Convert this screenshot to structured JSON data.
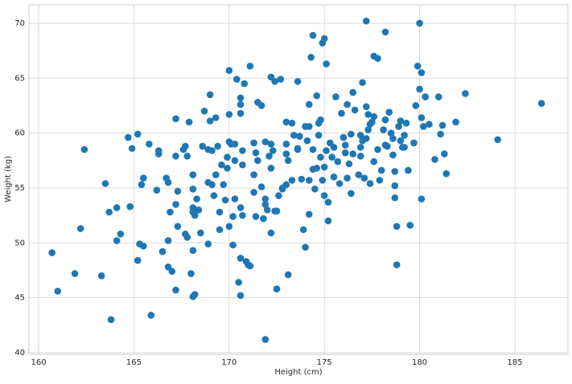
{
  "chart_data": {
    "type": "scatter",
    "x_label": "Height (cm)",
    "y_label": "Weight (kg)",
    "color": "#1f77b4",
    "grid": true,
    "xlim": [
      159.49,
      187.79
    ],
    "ylim": [
      39.85,
      71.68
    ],
    "xticks": [
      160,
      165,
      170,
      175,
      180,
      185
    ],
    "yticks": [
      40,
      45,
      50,
      55,
      60,
      65,
      70
    ],
    "x": [
      160.7,
      161.0,
      161.9,
      162.2,
      162.4,
      163.3,
      163.5,
      163.7,
      163.8,
      164.1,
      164.1,
      164.3,
      164.7,
      164.8,
      164.9,
      165.2,
      165.2,
      165.3,
      165.4,
      165.5,
      165.5,
      165.8,
      165.9,
      166.2,
      166.3,
      166.3,
      166.5,
      166.7,
      166.8,
      166.8,
      166.8,
      166.9,
      167.0,
      167.2,
      167.2,
      167.2,
      167.3,
      167.2,
      167.3,
      167.6,
      167.7,
      167.8,
      167.7,
      167.8,
      167.9,
      168.0,
      168.1,
      168.1,
      168.1,
      168.1,
      168.2,
      168.1,
      168.1,
      168.2,
      168.3,
      168.4,
      168.5,
      168.6,
      168.7,
      168.9,
      168.9,
      168.9,
      169.0,
      169.0,
      169.1,
      169.1,
      169.2,
      169.3,
      169.3,
      169.4,
      169.5,
      169.5,
      169.6,
      169.7,
      169.8,
      169.9,
      169.9,
      170.0,
      170.0,
      170.0,
      170.0,
      170.1,
      170.2,
      170.2,
      170.3,
      170.3,
      170.3,
      170.4,
      170.5,
      170.6,
      170.6,
      170.6,
      170.6,
      170.6,
      170.6,
      170.7,
      170.7,
      170.7,
      170.8,
      170.9,
      171.0,
      171.1,
      171.1,
      171.3,
      171.3,
      171.3,
      171.4,
      171.4,
      171.5,
      171.5,
      171.7,
      171.8,
      171.7,
      171.9,
      171.9,
      171.9,
      171.9,
      172.0,
      172.1,
      172.2,
      172.2,
      172.2,
      172.2,
      172.3,
      172.4,
      172.4,
      172.5,
      172.5,
      172.6,
      172.7,
      172.8,
      172.8,
      173.0,
      173.0,
      173.0,
      173.0,
      173.1,
      173.1,
      173.3,
      173.3,
      173.4,
      173.6,
      173.6,
      173.6,
      173.7,
      173.8,
      173.9,
      174.0,
      174.0,
      174.1,
      174.2,
      174.2,
      174.2,
      174.2,
      174.3,
      174.4,
      174.4,
      174.4,
      174.5,
      174.6,
      174.6,
      174.7,
      174.7,
      174.8,
      174.8,
      174.9,
      174.9,
      175.0,
      175.0,
      175.0,
      175.1,
      175.1,
      175.2,
      175.2,
      175.3,
      175.4,
      175.5,
      175.5,
      175.6,
      175.7,
      175.8,
      175.9,
      176.0,
      176.1,
      176.1,
      176.2,
      176.2,
      176.3,
      176.4,
      176.4,
      176.5,
      176.5,
      176.6,
      176.8,
      176.9,
      176.9,
      176.9,
      177.0,
      177.0,
      177.1,
      177.2,
      177.2,
      177.3,
      177.3,
      177.4,
      177.4,
      177.5,
      177.6,
      177.6,
      177.8,
      177.9,
      178.0,
      178.1,
      178.2,
      178.2,
      178.3,
      178.4,
      178.5,
      178.6,
      178.6,
      178.7,
      178.7,
      178.7,
      178.8,
      178.8,
      178.9,
      179.0,
      179.0,
      179.1,
      179.2,
      179.2,
      179.3,
      179.4,
      179.5,
      179.7,
      179.8,
      179.9,
      180.0,
      180.0,
      180.1,
      180.1,
      180.1,
      180.2,
      180.3,
      180.5,
      180.8,
      181.0,
      181.1,
      181.2,
      181.3,
      181.4,
      181.9,
      182.4,
      184.1,
      186.4,
      177.2,
      178.2,
      177.6,
      177.8
    ],
    "y": [
      49.1,
      45.6,
      47.2,
      51.3,
      58.5,
      47.0,
      55.4,
      52.8,
      43.0,
      53.2,
      50.2,
      50.8,
      59.6,
      53.3,
      58.6,
      59.9,
      48.4,
      49.9,
      55.3,
      49.7,
      55.9,
      59.0,
      43.4,
      54.8,
      58.4,
      58.1,
      49.2,
      55.9,
      55.5,
      50.2,
      47.8,
      52.8,
      47.4,
      61.3,
      57.9,
      53.5,
      54.7,
      45.7,
      51.5,
      58.5,
      58.8,
      57.9,
      50.8,
      50.5,
      61.0,
      47.2,
      56.2,
      54.9,
      53.2,
      52.8,
      52.5,
      49.3,
      45.1,
      45.3,
      54.0,
      53.0,
      50.9,
      58.8,
      62.0,
      58.5,
      55.5,
      49.9,
      63.5,
      61.1,
      55.3,
      58.4,
      54.3,
      61.4,
      56.2,
      58.8,
      52.8,
      51.2,
      57.1,
      55.3,
      53.9,
      56.8,
      57.8,
      59.2,
      51.5,
      65.7,
      61.7,
      59.0,
      52.4,
      49.8,
      54.0,
      57.5,
      59.0,
      64.9,
      46.4,
      62.6,
      63.2,
      61.8,
      48.6,
      53.2,
      45.2,
      58.4,
      57.1,
      52.5,
      64.5,
      48.3,
      48.0,
      66.1,
      47.9,
      59.1,
      56.2,
      54.6,
      52.4,
      58.2,
      62.8,
      57.5,
      55.1,
      52.2,
      62.5,
      59.2,
      54.0,
      53.5,
      41.2,
      53.0,
      57.9,
      50.9,
      65.1,
      56.8,
      59.0,
      58.4,
      64.7,
      52.9,
      52.9,
      45.8,
      54.3,
      64.9,
      55.0,
      54.9,
      61.0,
      55.3,
      59.0,
      58.1,
      57.5,
      47.1,
      60.9,
      55.7,
      59.8,
      58.5,
      64.7,
      58.6,
      59.7,
      55.8,
      51.2,
      49.6,
      60.6,
      59.3,
      55.7,
      62.6,
      52.6,
      60.6,
      66.9,
      68.9,
      56.7,
      58.5,
      54.9,
      63.4,
      56.8,
      60.9,
      59.8,
      61.2,
      57.8,
      68.2,
      55.7,
      54.3,
      56.9,
      68.6,
      58.4,
      66.3,
      53.7,
      52.0,
      59.1,
      57.8,
      56.0,
      58.7,
      63.3,
      57.4,
      55.4,
      61.8,
      59.6,
      58.9,
      58.2,
      62.6,
      55.9,
      57.2,
      59.9,
      54.5,
      58.1,
      63.7,
      62.1,
      56.2,
      59.8,
      57.9,
      58.7,
      59.3,
      64.6,
      55.9,
      62.4,
      59.5,
      60.3,
      61.7,
      60.8,
      55.4,
      61.0,
      61.5,
      57.4,
      58.5,
      55.7,
      56.6,
      60.3,
      58.9,
      61.2,
      58.8,
      61.9,
      60.0,
      59.5,
      58.0,
      56.5,
      55.2,
      54.1,
      51.5,
      48.0,
      60.6,
      59.3,
      61.1,
      58.7,
      58.7,
      59.8,
      60.9,
      56.6,
      51.6,
      59.1,
      62.5,
      66.1,
      64.0,
      70.0,
      54.0,
      61.4,
      65.5,
      60.6,
      63.3,
      60.8,
      57.6,
      63.3,
      59.9,
      60.7,
      58.1,
      56.3,
      61.0,
      63.6,
      59.4,
      62.7,
      70.2,
      69.2,
      67.0,
      66.8
    ]
  }
}
